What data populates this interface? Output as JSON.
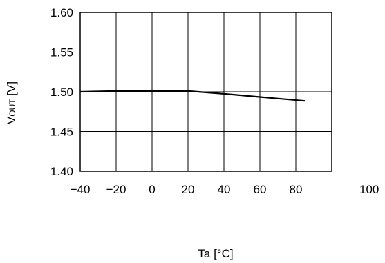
{
  "chart_data": {
    "type": "line",
    "xlabel": "Ta [°C]",
    "ylabel": {
      "main": "V",
      "sub": "OUT",
      "unit": " [V]"
    },
    "xlim": [
      -40,
      100
    ],
    "ylim": [
      1.4,
      1.6
    ],
    "xticks": [
      "−40",
      "−20",
      "0",
      "20",
      "40",
      "60",
      "80",
      "100"
    ],
    "xtick_values": [
      -40,
      -20,
      0,
      20,
      40,
      60,
      80,
      100
    ],
    "yticks": [
      "1.40",
      "1.45",
      "1.50",
      "1.55",
      "1.60"
    ],
    "ytick_values": [
      1.4,
      1.45,
      1.5,
      1.55,
      1.6
    ],
    "grid": true,
    "series": [
      {
        "x": [
          -40,
          -20,
          0,
          20,
          40,
          60,
          85
        ],
        "values": [
          1.5,
          1.501,
          1.5015,
          1.501,
          1.4975,
          1.4935,
          1.4885
        ],
        "color": "#000000"
      }
    ]
  }
}
